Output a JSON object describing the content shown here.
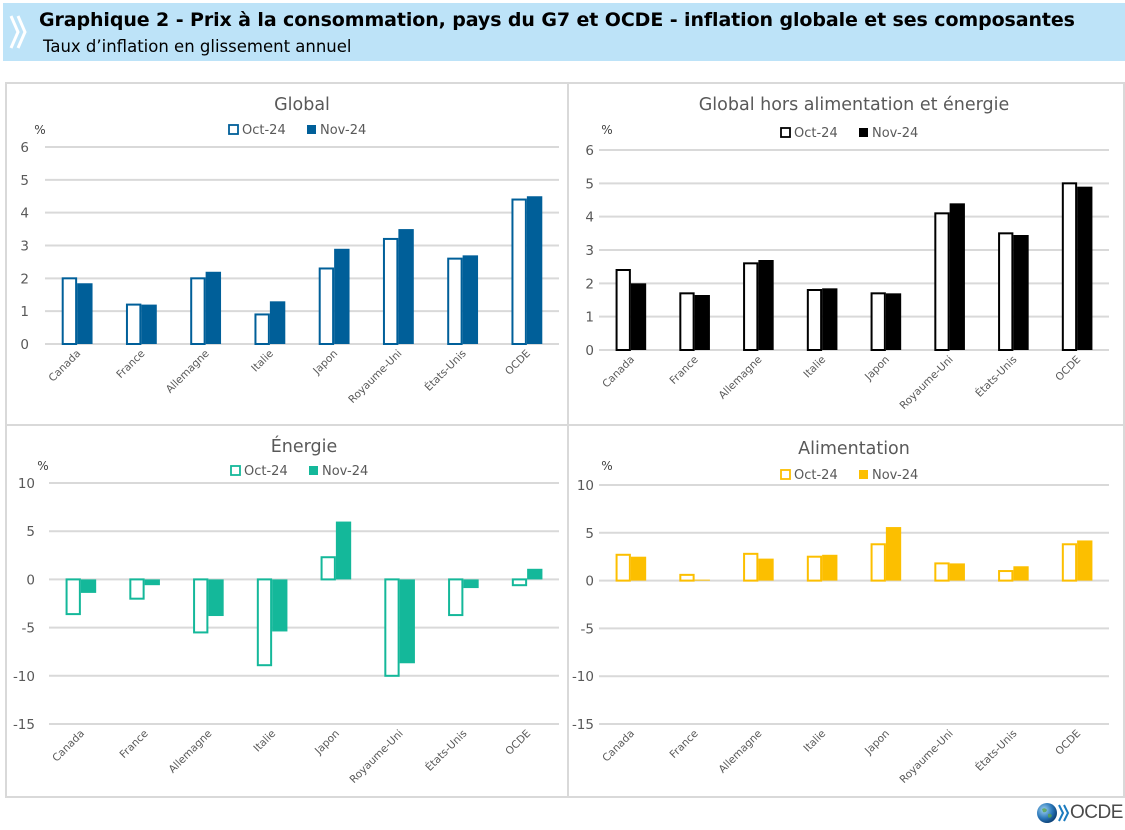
{
  "header": {
    "title": "Graphique 2 - Prix à la consommation, pays du G7 et OCDE - inflation globale et ses composantes",
    "subtitle": "Taux d’inflation en glissement annuel",
    "icon": "double-chevron-icon"
  },
  "logo": {
    "text": "OCDE",
    "icon": "globe-icon"
  },
  "chart_data": [
    {
      "id": "global",
      "type": "bar",
      "title": "Global",
      "ylabel": "%",
      "xlabel": "",
      "ylim": [
        0,
        6
      ],
      "yticks": [
        0,
        1,
        2,
        3,
        4,
        5,
        6
      ],
      "grid": true,
      "legend": "top-center",
      "color": "#005f99",
      "categories": [
        "Canada",
        "France",
        "Allemagne",
        "Italie",
        "Japon",
        "Royaume-Uni",
        "États-Unis",
        "OCDE"
      ],
      "series": [
        {
          "name": "Oct-24",
          "style": "outline",
          "values": [
            2.0,
            1.2,
            2.0,
            0.9,
            2.3,
            3.2,
            2.6,
            4.4
          ]
        },
        {
          "name": "Nov-24",
          "style": "filled",
          "values": [
            1.85,
            1.2,
            2.2,
            1.3,
            2.9,
            3.5,
            2.7,
            4.5
          ]
        }
      ]
    },
    {
      "id": "core",
      "type": "bar",
      "title": "Global hors alimentation et énergie",
      "ylabel": "%",
      "xlabel": "",
      "ylim": [
        0,
        6
      ],
      "yticks": [
        0,
        1,
        2,
        3,
        4,
        5,
        6
      ],
      "grid": true,
      "legend": "top-center",
      "color": "#000000",
      "categories": [
        "Canada",
        "France",
        "Allemagne",
        "Italie",
        "Japon",
        "Royaume-Uni",
        "États-Unis",
        "OCDE"
      ],
      "series": [
        {
          "name": "Oct-24",
          "style": "outline",
          "values": [
            2.4,
            1.7,
            2.6,
            1.8,
            1.7,
            4.1,
            3.5,
            5.0
          ]
        },
        {
          "name": "Nov-24",
          "style": "filled",
          "values": [
            2.0,
            1.65,
            2.7,
            1.85,
            1.7,
            4.4,
            3.45,
            4.9
          ]
        }
      ]
    },
    {
      "id": "energy",
      "type": "bar",
      "title": "Énergie",
      "ylabel": "%",
      "xlabel": "",
      "ylim": [
        -15,
        10
      ],
      "yticks": [
        -15,
        -10,
        -5,
        0,
        5,
        10
      ],
      "grid": true,
      "legend": "top-center",
      "color": "#14b89a",
      "categories": [
        "Canada",
        "France",
        "Allemagne",
        "Italie",
        "Japon",
        "Royaume-Uni",
        "États-Unis",
        "OCDE"
      ],
      "series": [
        {
          "name": "Oct-24",
          "style": "outline",
          "values": [
            -3.6,
            -2.0,
            -5.5,
            -8.9,
            2.3,
            -10.0,
            -3.7,
            -0.6
          ]
        },
        {
          "name": "Nov-24",
          "style": "filled",
          "values": [
            -1.4,
            -0.6,
            -3.8,
            -5.4,
            6.0,
            -8.7,
            -0.9,
            1.1
          ]
        }
      ]
    },
    {
      "id": "food",
      "type": "bar",
      "title": "Alimentation",
      "ylabel": "%",
      "xlabel": "",
      "ylim": [
        -15,
        10
      ],
      "yticks": [
        -15,
        -10,
        -5,
        0,
        5,
        10
      ],
      "grid": true,
      "legend": "top-center",
      "color": "#fcbf00",
      "categories": [
        "Canada",
        "France",
        "Allemagne",
        "Italie",
        "Japon",
        "Royaume-Uni",
        "États-Unis",
        "OCDE"
      ],
      "series": [
        {
          "name": "Oct-24",
          "style": "outline",
          "values": [
            2.7,
            0.6,
            2.8,
            2.5,
            3.8,
            1.8,
            1.0,
            3.8
          ]
        },
        {
          "name": "Nov-24",
          "style": "filled",
          "values": [
            2.5,
            0.1,
            2.3,
            2.7,
            5.6,
            1.8,
            1.5,
            4.2
          ]
        }
      ]
    }
  ]
}
